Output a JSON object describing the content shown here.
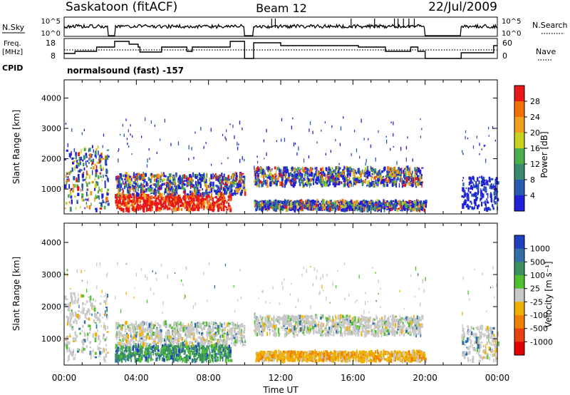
{
  "header": {
    "station": "Saskatoon (fitACF)",
    "beam": "Beam 12",
    "date": "22/Jul/2009"
  },
  "ops_panels": {
    "nsky_label": "N.Sky",
    "nsky_ticks": [
      "10^5",
      "10^0"
    ],
    "nsearch_label": "N.Search",
    "nsearch_ticks": [
      "10^5",
      "10^0"
    ],
    "freq_label_line1": "Freq.",
    "freq_label_line2": "[MHz]",
    "freq_ticks": [
      "18",
      "8"
    ],
    "nave_label": "Nave",
    "nave_ticks": [
      "60",
      "0"
    ],
    "cpid_label": "CPID",
    "cpid_text": "normalsound (fast) -157"
  },
  "x_axis": {
    "label": "Time UT",
    "ticks": [
      "00:00",
      "04:00",
      "08:00",
      "12:00",
      "16:00",
      "20:00",
      "00:00"
    ]
  },
  "chart_data": [
    {
      "type": "heatmap",
      "name": "power-panel",
      "ylabel": "Slant Range [km]",
      "yticks": [
        1000,
        2000,
        3000,
        4000
      ],
      "ylim": [
        180,
        4600
      ],
      "xlim_hours": [
        0,
        24
      ],
      "colorbar_label": "Power [dB]",
      "colorbar_ticks": [
        "28",
        "24",
        "20",
        "16",
        "12",
        "8",
        "4"
      ],
      "colorbar_colors": [
        "#2020d8",
        "#2a5ab0",
        "#3a8a70",
        "#4cb04a",
        "#c8d020",
        "#f0a020",
        "#f07000",
        "#e81818"
      ],
      "data_gaps_hours": [
        [
          2.4,
          2.8
        ],
        [
          10.0,
          10.5
        ],
        [
          20.0,
          22.0
        ]
      ],
      "echo_regions": [
        {
          "t": [
            0.0,
            2.4
          ],
          "range": [
            300,
            2400
          ],
          "level": "mixed",
          "typical_db": 14
        },
        {
          "t": [
            2.8,
            9.2
          ],
          "range": [
            300,
            800
          ],
          "level": "high",
          "typical_db": 28
        },
        {
          "t": [
            2.8,
            10.0
          ],
          "range": [
            800,
            1500
          ],
          "level": "mixed",
          "typical_db": 16
        },
        {
          "t": [
            10.5,
            20.0
          ],
          "range": [
            300,
            600
          ],
          "level": "mixed",
          "typical_db": 12
        },
        {
          "t": [
            10.5,
            19.8
          ],
          "range": [
            1100,
            1700
          ],
          "level": "mixed",
          "typical_db": 14
        },
        {
          "t": [
            22.0,
            24.0
          ],
          "range": [
            300,
            1400
          ],
          "level": "low",
          "typical_db": 6
        }
      ]
    },
    {
      "type": "heatmap",
      "name": "velocity-panel",
      "ylabel": "Slant Range [km]",
      "yticks": [
        1000,
        2000,
        3000,
        4000
      ],
      "ylim": [
        180,
        4600
      ],
      "xlim_hours": [
        0,
        24
      ],
      "colorbar_label": "Velocity [m s⁻¹]",
      "colorbar_ticks": [
        "1000",
        "500",
        "100",
        "25",
        "-25",
        "-100",
        "-500",
        "-1000"
      ],
      "colorbar_colors": [
        "#2040c0",
        "#3070a8",
        "#3a9060",
        "#50c030",
        "#c8c8c8",
        "#f0b000",
        "#f08000",
        "#e84010",
        "#e00000"
      ],
      "data_gaps_hours": [
        [
          2.4,
          2.8
        ],
        [
          10.0,
          10.5
        ],
        [
          20.0,
          22.0
        ]
      ],
      "echo_regions": [
        {
          "t": [
            0.0,
            2.4
          ],
          "range": [
            300,
            2400
          ],
          "typical_velocity": 0
        },
        {
          "t": [
            2.8,
            9.2
          ],
          "range": [
            300,
            800
          ],
          "typical_velocity": 100
        },
        {
          "t": [
            2.8,
            10.0
          ],
          "range": [
            800,
            1500
          ],
          "typical_velocity": 0
        },
        {
          "t": [
            10.5,
            20.0
          ],
          "range": [
            300,
            600
          ],
          "typical_velocity": -100
        },
        {
          "t": [
            10.5,
            19.8
          ],
          "range": [
            1100,
            1700
          ],
          "typical_velocity": 0
        },
        {
          "t": [
            22.0,
            24.0
          ],
          "range": [
            300,
            1400
          ],
          "typical_velocity": 0
        }
      ]
    }
  ]
}
